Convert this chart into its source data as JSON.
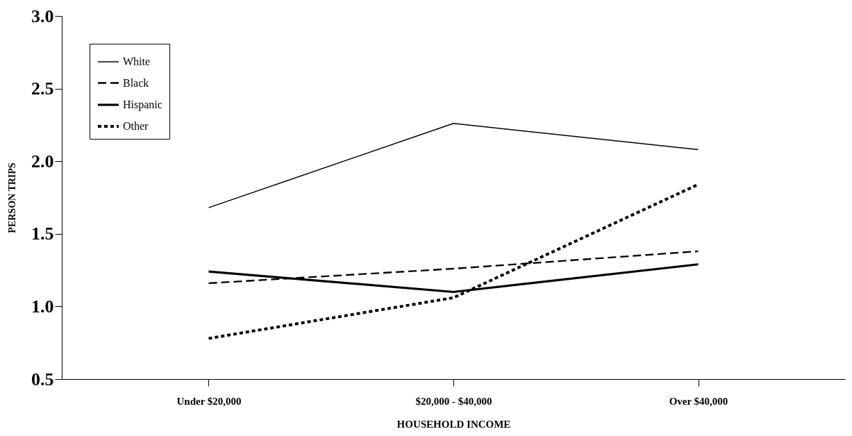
{
  "chart_data": {
    "type": "line",
    "xlabel": "HOUSEHOLD INCOME",
    "ylabel": "PERSON TRIPS",
    "categories": [
      "Under $20,000",
      "$20,000 - $40,000",
      "Over $40,000"
    ],
    "series": [
      {
        "name": "White",
        "color": "#000000",
        "line_style": "solid",
        "values": [
          1.68,
          2.26,
          2.08
        ]
      },
      {
        "name": "Black",
        "color": "#000000",
        "line_style": "dashed",
        "values": [
          1.16,
          1.26,
          1.38
        ]
      },
      {
        "name": "Hispanic",
        "color": "#000000",
        "line_style": "solid",
        "values": [
          1.24,
          1.1,
          1.29
        ]
      },
      {
        "name": "Other",
        "color": "#000000",
        "line_style": "dotted",
        "values": [
          0.78,
          1.06,
          1.84
        ]
      }
    ],
    "ylim": [
      0.5,
      3.0
    ],
    "yticks": [
      {
        "value": 0.5,
        "label": "0.5"
      },
      {
        "value": 1.0,
        "label": "1.0"
      },
      {
        "value": 1.5,
        "label": "1.5"
      },
      {
        "value": 2.0,
        "label": "2.0"
      },
      {
        "value": 2.5,
        "label": "2.5"
      },
      {
        "value": 3.0,
        "label": "3.0"
      }
    ],
    "grid": false,
    "legend": "top left",
    "marker": "none"
  }
}
